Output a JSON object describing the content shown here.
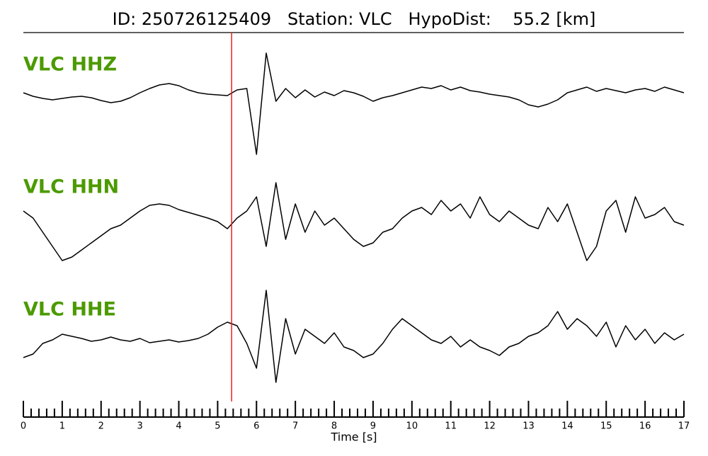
{
  "chart_data": {
    "type": "line",
    "title": "ID: 250726125409   Station: VLC   HypoDist:    55.2 [km]",
    "xlabel": "Time [s]",
    "xlim": [
      0,
      17
    ],
    "xticks": [
      0,
      1,
      2,
      3,
      4,
      5,
      6,
      7,
      8,
      9,
      10,
      11,
      12,
      13,
      14,
      15,
      16,
      17
    ],
    "xminorticks": [
      0.2,
      0.4,
      0.6,
      0.8,
      1.2,
      1.4,
      1.6,
      1.8,
      2.2,
      2.4,
      2.6,
      2.8,
      3.2,
      3.4,
      3.6,
      3.8,
      4.2,
      4.4,
      4.6,
      4.8,
      5.2,
      5.4,
      5.6,
      5.8,
      6.2,
      6.4,
      6.6,
      6.8,
      7.2,
      7.4,
      7.6,
      7.8,
      8.2,
      8.4,
      8.6,
      8.8,
      9.2,
      9.4,
      9.6,
      9.8,
      10.2,
      10.4,
      10.6,
      10.8,
      11.2,
      11.4,
      11.6,
      11.8,
      12.2,
      12.4,
      12.6,
      12.8,
      13.2,
      13.4,
      13.6,
      13.8,
      14.2,
      14.4,
      14.6,
      14.8,
      15.2,
      15.4,
      15.6,
      15.8,
      16.2,
      16.4,
      16.6,
      16.8
    ],
    "pick": {
      "x": 5.36,
      "color": "#e8211c"
    },
    "label_color": "#4c9a00",
    "x": [
      0,
      0.25,
      0.5,
      0.75,
      1,
      1.25,
      1.5,
      1.75,
      2,
      2.25,
      2.5,
      2.75,
      3,
      3.25,
      3.5,
      3.75,
      4,
      4.25,
      4.5,
      4.75,
      5,
      5.25,
      5.5,
      5.75,
      6,
      6.25,
      6.5,
      6.75,
      7,
      7.25,
      7.5,
      7.75,
      8,
      8.25,
      8.5,
      8.75,
      9,
      9.25,
      9.5,
      9.75,
      10,
      10.25,
      10.5,
      10.75,
      11,
      11.25,
      11.5,
      11.75,
      12,
      12.25,
      12.5,
      12.75,
      13,
      13.25,
      13.5,
      13.75,
      14,
      14.25,
      14.5,
      14.75,
      15,
      15.25,
      15.5,
      15.75,
      16,
      16.25,
      16.5,
      16.75,
      17
    ],
    "series": [
      {
        "name": "VLC HHZ",
        "color": "#000000",
        "values": [
          2,
          -3,
          -6,
          -8,
          -6,
          -4,
          -3,
          -5,
          -9,
          -12,
          -10,
          -5,
          2,
          8,
          13,
          15,
          12,
          6,
          2,
          0,
          -1,
          -2,
          6,
          8,
          -85,
          58,
          -10,
          8,
          -5,
          6,
          -4,
          3,
          -2,
          5,
          2,
          -3,
          -10,
          -5,
          -2,
          2,
          6,
          10,
          8,
          12,
          6,
          10,
          5,
          3,
          0,
          -2,
          -4,
          -8,
          -15,
          -18,
          -14,
          -8,
          2,
          6,
          10,
          4,
          8,
          5,
          2,
          6,
          8,
          4,
          10,
          6,
          2
        ]
      },
      {
        "name": "VLC HHN",
        "color": "#000000",
        "values": [
          20,
          10,
          -10,
          -30,
          -50,
          -45,
          -35,
          -25,
          -15,
          -5,
          0,
          10,
          20,
          28,
          30,
          28,
          22,
          18,
          14,
          10,
          5,
          -5,
          10,
          20,
          40,
          -30,
          60,
          -20,
          30,
          -10,
          20,
          0,
          10,
          -5,
          -20,
          -30,
          -25,
          -10,
          -5,
          10,
          20,
          25,
          15,
          35,
          20,
          30,
          10,
          40,
          15,
          5,
          20,
          10,
          0,
          -5,
          25,
          5,
          30,
          -10,
          -50,
          -30,
          20,
          35,
          -10,
          40,
          10,
          15,
          25,
          5,
          0
        ]
      },
      {
        "name": "VLC HHE",
        "color": "#000000",
        "values": [
          -25,
          -20,
          -5,
          0,
          8,
          5,
          2,
          -2,
          0,
          4,
          0,
          -2,
          2,
          -4,
          -2,
          0,
          -3,
          -1,
          2,
          8,
          18,
          25,
          20,
          -5,
          -40,
          70,
          -60,
          30,
          -20,
          15,
          5,
          -5,
          10,
          -10,
          -15,
          -25,
          -20,
          -5,
          15,
          30,
          20,
          10,
          0,
          -5,
          5,
          -10,
          0,
          -10,
          -15,
          -22,
          -10,
          -5,
          5,
          10,
          20,
          40,
          15,
          30,
          20,
          5,
          25,
          -10,
          20,
          0,
          15,
          -5,
          10,
          0,
          8
        ]
      }
    ]
  }
}
